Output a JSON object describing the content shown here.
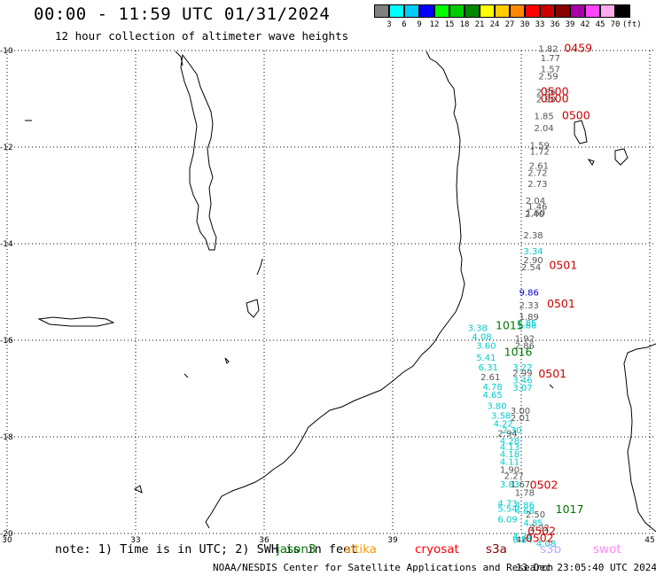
{
  "header": {
    "title": "00:00 - 11:59 UTC 01/31/2024",
    "subtitle": "12 hour collection of altimeter wave heights"
  },
  "legend": {
    "unit": "(ft)",
    "colors": [
      "#808080",
      "#00ffff",
      "#00ccff",
      "#0000ff",
      "#00ff00",
      "#00cc00",
      "#008800",
      "#ffff00",
      "#ffcc00",
      "#ff8800",
      "#ff0000",
      "#cc0000",
      "#880000",
      "#aa00aa",
      "#ff44ff",
      "#ffaaee",
      "#000000"
    ],
    "labels": [
      "3",
      "6",
      "9",
      "12",
      "15",
      "18",
      "21",
      "24",
      "27",
      "30",
      "33",
      "36",
      "39",
      "42",
      "45",
      "70"
    ]
  },
  "axes": {
    "lon_ticks": [
      "30",
      "33",
      "36",
      "39",
      "42",
      "45"
    ],
    "lat_ticks": [
      "-10",
      "-12",
      "-14",
      "-16",
      "-18",
      "-20"
    ]
  },
  "footer": {
    "note": "note: 1) Time is in UTC; 2) SWH is in feet",
    "satellites": [
      {
        "name": "jason3",
        "color": "#007700"
      },
      {
        "name": "altika",
        "color": "#ff9900"
      },
      {
        "name": "cryosat",
        "color": "#ff0000"
      },
      {
        "name": "s3a",
        "color": "#880000"
      },
      {
        "name": "s3b",
        "color": "#bbaaff"
      },
      {
        "name": "swot",
        "color": "#ff88ee"
      }
    ],
    "credit": "NOAA/NESDIS Center for Satellite Applications and Research",
    "stamp": "13 Dec 23:05:40 UTC 2024"
  },
  "time_labels": [
    {
      "text": "0459",
      "lon": 43.0,
      "lat": -9.95,
      "color": "#cc0000"
    },
    {
      "text": "0500",
      "lon": 42.45,
      "lat": -10.85,
      "color": "#cc0000"
    },
    {
      "text": "0500",
      "lon": 42.45,
      "lat": -11.0,
      "color": "#cc0000"
    },
    {
      "text": "0500",
      "lon": 42.95,
      "lat": -11.35,
      "color": "#cc0000"
    },
    {
      "text": "0501",
      "lon": 42.65,
      "lat": -14.45,
      "color": "#cc0000"
    },
    {
      "text": "0501",
      "lon": 42.6,
      "lat": -15.25,
      "color": "#cc0000"
    },
    {
      "text": "1015",
      "lon": 41.4,
      "lat": -15.7,
      "color": "#007700"
    },
    {
      "text": "1016",
      "lon": 41.6,
      "lat": -16.25,
      "color": "#007700"
    },
    {
      "text": "0501",
      "lon": 42.4,
      "lat": -16.7,
      "color": "#cc0000"
    },
    {
      "text": "0502",
      "lon": 42.2,
      "lat": -19.0,
      "color": "#cc0000"
    },
    {
      "text": "1017",
      "lon": 42.8,
      "lat": -19.5,
      "color": "#007700"
    },
    {
      "text": "0502",
      "lon": 42.1,
      "lat": -20.1,
      "color": "#cc0000"
    },
    {
      "text": "0502",
      "lon": 42.15,
      "lat": -19.95,
      "color": "#cc0000"
    }
  ],
  "swh_values": [
    {
      "text": "1.82",
      "lon": 42.4,
      "lat": -9.95,
      "color": "#555555"
    },
    {
      "text": "1.77",
      "lon": 42.45,
      "lat": -10.15,
      "color": "#555555"
    },
    {
      "text": "1.57",
      "lon": 42.45,
      "lat": -10.38,
      "color": "#555555"
    },
    {
      "text": "2.59",
      "lon": 42.4,
      "lat": -10.52,
      "color": "#555555"
    },
    {
      "text": "2.86",
      "lon": 42.35,
      "lat": -10.85,
      "color": "#555555"
    },
    {
      "text": "2.90",
      "lon": 42.35,
      "lat": -11.0,
      "color": "#555555"
    },
    {
      "text": "1.85",
      "lon": 42.3,
      "lat": -11.35,
      "color": "#555555"
    },
    {
      "text": "2.04",
      "lon": 42.3,
      "lat": -11.6,
      "color": "#555555"
    },
    {
      "text": "1.59",
      "lon": 42.2,
      "lat": -11.95,
      "color": "#555555"
    },
    {
      "text": "1.72",
      "lon": 42.2,
      "lat": -12.08,
      "color": "#555555"
    },
    {
      "text": "2.61",
      "lon": 42.18,
      "lat": -12.38,
      "color": "#555555"
    },
    {
      "text": "2.72",
      "lon": 42.15,
      "lat": -12.52,
      "color": "#555555"
    },
    {
      "text": "2.73",
      "lon": 42.15,
      "lat": -12.75,
      "color": "#555555"
    },
    {
      "text": "2.04",
      "lon": 42.1,
      "lat": -13.1,
      "color": "#555555"
    },
    {
      "text": "1.46",
      "lon": 42.15,
      "lat": -13.22,
      "color": "#555555"
    },
    {
      "text": "1.60",
      "lon": 42.1,
      "lat": -13.35,
      "color": "#555555"
    },
    {
      "text": "2.40",
      "lon": 42.08,
      "lat": -13.38,
      "color": "#555555"
    },
    {
      "text": "2.38",
      "lon": 42.05,
      "lat": -13.82,
      "color": "#555555"
    },
    {
      "text": "3.34",
      "lon": 42.05,
      "lat": -14.15,
      "color": "#00cccc"
    },
    {
      "text": "2.90",
      "lon": 42.05,
      "lat": -14.33,
      "color": "#555555"
    },
    {
      "text": "2.54",
      "lon": 42.0,
      "lat": -14.48,
      "color": "#555555"
    },
    {
      "text": "9.86",
      "lon": 41.95,
      "lat": -15.0,
      "color": "#0000cc"
    },
    {
      "text": "2.33",
      "lon": 41.95,
      "lat": -15.27,
      "color": "#555555"
    },
    {
      "text": "1.89",
      "lon": 41.95,
      "lat": -15.5,
      "color": "#555555"
    },
    {
      "text": "1.85",
      "lon": 41.9,
      "lat": -15.63,
      "color": "#00cccc"
    },
    {
      "text": "1.88",
      "lon": 41.9,
      "lat": -15.68,
      "color": "#00cccc"
    },
    {
      "text": "3.38",
      "lon": 40.75,
      "lat": -15.73,
      "color": "#00cccc"
    },
    {
      "text": "1.92",
      "lon": 41.85,
      "lat": -15.95,
      "color": "#555555"
    },
    {
      "text": "4.08",
      "lon": 40.85,
      "lat": -15.92,
      "color": "#00cccc"
    },
    {
      "text": "2.86",
      "lon": 41.85,
      "lat": -16.1,
      "color": "#555555"
    },
    {
      "text": "3.60",
      "lon": 40.95,
      "lat": -16.1,
      "color": "#00cccc"
    },
    {
      "text": "5.41",
      "lon": 40.95,
      "lat": -16.35,
      "color": "#00cccc"
    },
    {
      "text": "6.31",
      "lon": 41.0,
      "lat": -16.55,
      "color": "#00cccc"
    },
    {
      "text": "2.61",
      "lon": 41.05,
      "lat": -16.75,
      "color": "#555555"
    },
    {
      "text": "3.22",
      "lon": 41.8,
      "lat": -16.55,
      "color": "#00cccc"
    },
    {
      "text": "2.99",
      "lon": 41.8,
      "lat": -16.67,
      "color": "#555555"
    },
    {
      "text": "3.46",
      "lon": 41.8,
      "lat": -16.82,
      "color": "#00cccc"
    },
    {
      "text": "3.07",
      "lon": 41.8,
      "lat": -16.97,
      "color": "#00cccc"
    },
    {
      "text": "4.78",
      "lon": 41.1,
      "lat": -16.95,
      "color": "#00cccc"
    },
    {
      "text": "4.65",
      "lon": 41.1,
      "lat": -17.12,
      "color": "#00cccc"
    },
    {
      "text": "3.80",
      "lon": 41.2,
      "lat": -17.35,
      "color": "#00cccc"
    },
    {
      "text": "3.00",
      "lon": 41.75,
      "lat": -17.45,
      "color": "#555555"
    },
    {
      "text": "3.58",
      "lon": 41.3,
      "lat": -17.55,
      "color": "#00cccc"
    },
    {
      "text": "2.01",
      "lon": 41.75,
      "lat": -17.6,
      "color": "#555555"
    },
    {
      "text": "4.22",
      "lon": 41.35,
      "lat": -17.72,
      "color": "#00cccc"
    },
    {
      "text": "2.30",
      "lon": 41.55,
      "lat": -17.85,
      "color": "#00cccc"
    },
    {
      "text": "2.94",
      "lon": 41.45,
      "lat": -17.92,
      "color": "#555555"
    },
    {
      "text": "4.28",
      "lon": 41.5,
      "lat": -18.07,
      "color": "#00cccc"
    },
    {
      "text": "4.13",
      "lon": 41.5,
      "lat": -18.2,
      "color": "#00cccc"
    },
    {
      "text": "4.18",
      "lon": 41.5,
      "lat": -18.35,
      "color": "#00cccc"
    },
    {
      "text": "4.11",
      "lon": 41.5,
      "lat": -18.5,
      "color": "#00cccc"
    },
    {
      "text": "1.90",
      "lon": 41.5,
      "lat": -18.67,
      "color": "#555555"
    },
    {
      "text": "2.27",
      "lon": 41.6,
      "lat": -18.8,
      "color": "#555555"
    },
    {
      "text": "3.83",
      "lon": 41.5,
      "lat": -18.97,
      "color": "#00cccc"
    },
    {
      "text": "1.67",
      "lon": 41.75,
      "lat": -18.97,
      "color": "#555555"
    },
    {
      "text": "1.78",
      "lon": 41.85,
      "lat": -19.15,
      "color": "#555555"
    },
    {
      "text": "4.73",
      "lon": 41.45,
      "lat": -19.37,
      "color": "#00cccc"
    },
    {
      "text": "5.54",
      "lon": 41.45,
      "lat": -19.48,
      "color": "#00cccc"
    },
    {
      "text": "4.86",
      "lon": 41.85,
      "lat": -19.4,
      "color": "#00cccc"
    },
    {
      "text": "4.68",
      "lon": 41.85,
      "lat": -19.52,
      "color": "#00cccc"
    },
    {
      "text": "2.50",
      "lon": 42.1,
      "lat": -19.6,
      "color": "#555555"
    },
    {
      "text": "6.09",
      "lon": 41.45,
      "lat": -19.7,
      "color": "#00cccc"
    },
    {
      "text": "4.85",
      "lon": 42.05,
      "lat": -19.77,
      "color": "#00cccc"
    },
    {
      "text": "2.22",
      "lon": 42.2,
      "lat": -19.87,
      "color": "#555555"
    },
    {
      "text": "4.28",
      "lon": 41.8,
      "lat": -20.05,
      "color": "#00cccc"
    },
    {
      "text": "6.84",
      "lon": 41.8,
      "lat": -20.12,
      "color": "#00cccc"
    },
    {
      "text": "4.08",
      "lon": 42.35,
      "lat": -20.2,
      "color": "#00cccc"
    }
  ]
}
